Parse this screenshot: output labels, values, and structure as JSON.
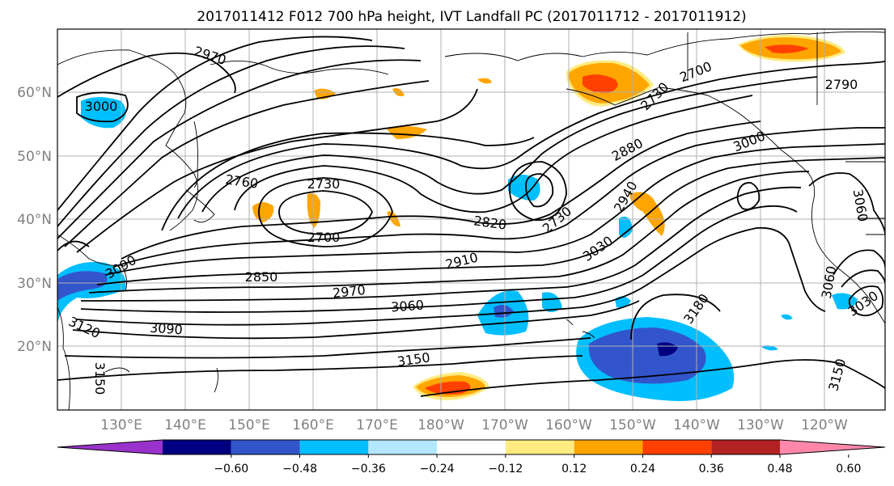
{
  "title": "2017011412 F012 700 hPa height, IVT Landfall PC (2017011712 - 2017011912)",
  "lat_labels": [
    "60°N",
    "50°N",
    "40°N",
    "30°N",
    "20°N"
  ],
  "lon_labels": [
    "130°E",
    "140°E",
    "150°E",
    "160°E",
    "170°E",
    "180°W",
    "170°W",
    "160°W",
    "150°W",
    "140°W",
    "130°W",
    "120°W"
  ],
  "contour_labels": [
    "2970",
    "3000",
    "2760",
    "2730",
    "2700",
    "2820",
    "2730",
    "2910",
    "2850",
    "2970",
    "3060",
    "3090",
    "3120",
    "3150",
    "3150",
    "3030",
    "2940",
    "2880",
    "3000",
    "2790",
    "2700",
    "2730",
    "3060",
    "3030",
    "3180",
    "3150",
    "3060",
    "3090"
  ],
  "colorbar": {
    "colors": [
      "#9933cc",
      "#000080",
      "#3355cc",
      "#00bfff",
      "#b3e6ff",
      "#ffffff",
      "#ffeb80",
      "#ffa500",
      "#ff4000",
      "#b22222",
      "#ff88aa"
    ],
    "tick_labels": [
      "−0.60",
      "−0.48",
      "−0.36",
      "−0.24",
      "−0.12",
      "0.12",
      "0.24",
      "0.36",
      "0.48",
      "0.60"
    ]
  }
}
